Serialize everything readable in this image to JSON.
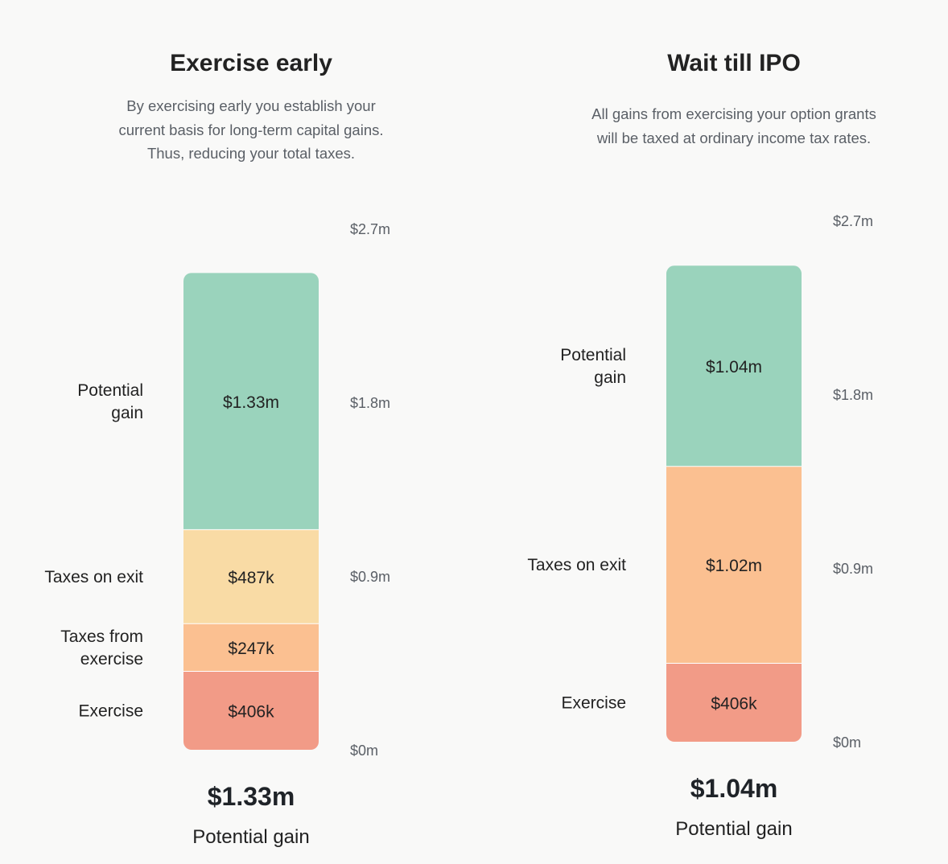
{
  "colors": {
    "potential_gain": "#9ad3bc",
    "taxes_on_exit_early": "#f9dba5",
    "taxes_from_exercise": "#fbc091",
    "taxes_on_exit_ipo": "#fbc091",
    "exercise": "#f29b87",
    "axis_text": "#5a5f66"
  },
  "chart_data": [
    {
      "type": "bar",
      "stacked": true,
      "title": "Exercise early",
      "subtitle_lines": [
        "By exercising early you establish your",
        "current basis for long-term capital gains.",
        "Thus, reducing your total taxes."
      ],
      "ylim": [
        0,
        2.7
      ],
      "y_unit": "$m",
      "y_ticks": [
        {
          "value": 0,
          "label": "$0m"
        },
        {
          "value": 0.9,
          "label": "$0.9m"
        },
        {
          "value": 1.8,
          "label": "$1.8m"
        },
        {
          "value": 2.7,
          "label": "$2.7m"
        }
      ],
      "segments": [
        {
          "name_lines": [
            "Exercise"
          ],
          "value": 0.406,
          "label": "$406k",
          "color_key": "exercise"
        },
        {
          "name_lines": [
            "Taxes from",
            "exercise"
          ],
          "value": 0.247,
          "label": "$247k",
          "color_key": "taxes_from_exercise"
        },
        {
          "name_lines": [
            "Taxes on exit"
          ],
          "value": 0.487,
          "label": "$487k",
          "color_key": "taxes_on_exit_early"
        },
        {
          "name_lines": [
            "Potential",
            "gain"
          ],
          "value": 1.33,
          "label": "$1.33m",
          "color_key": "potential_gain"
        }
      ],
      "total": "$1.33m",
      "total_label": "Potential gain"
    },
    {
      "type": "bar",
      "stacked": true,
      "title": "Wait till IPO",
      "subtitle_lines": [
        "All gains from exercising your option grants",
        "will be taxed at ordinary income tax rates."
      ],
      "ylim": [
        0,
        2.7
      ],
      "y_unit": "$m",
      "y_ticks": [
        {
          "value": 0,
          "label": "$0m"
        },
        {
          "value": 0.9,
          "label": "$0.9m"
        },
        {
          "value": 1.8,
          "label": "$1.8m"
        },
        {
          "value": 2.7,
          "label": "$2.7m"
        }
      ],
      "segments": [
        {
          "name_lines": [
            "Exercise"
          ],
          "value": 0.406,
          "label": "$406k",
          "color_key": "exercise"
        },
        {
          "name_lines": [
            "Taxes on exit"
          ],
          "value": 1.02,
          "label": "$1.02m",
          "color_key": "taxes_on_exit_ipo"
        },
        {
          "name_lines": [
            "Potential",
            "gain"
          ],
          "value": 1.04,
          "label": "$1.04m",
          "color_key": "potential_gain"
        }
      ],
      "total": "$1.04m",
      "total_label": "Potential gain"
    }
  ]
}
